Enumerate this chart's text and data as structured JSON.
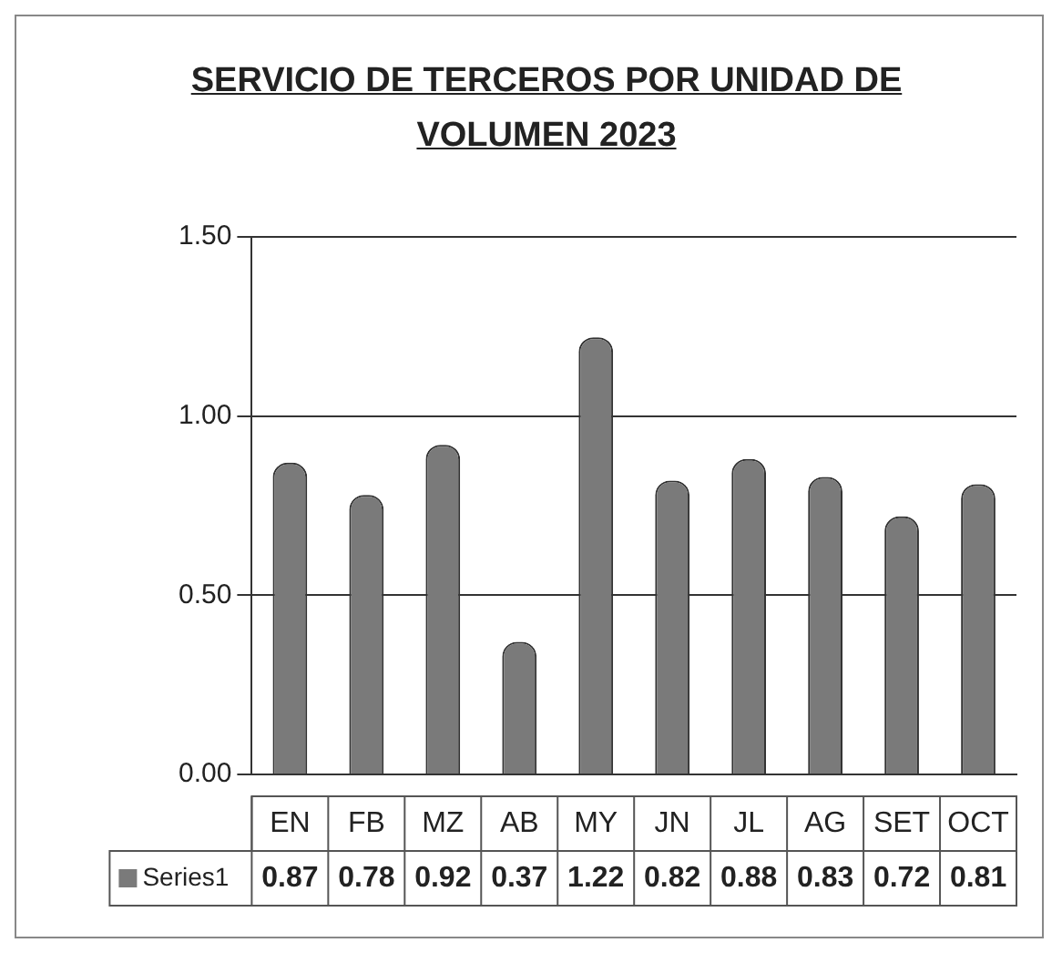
{
  "chart_data": {
    "type": "bar",
    "title": "SERVICIO DE TERCEROS POR UNIDAD DE VOLUMEN 2023",
    "categories": [
      "EN",
      "FB",
      "MZ",
      "AB",
      "MY",
      "JN",
      "JL",
      "AG",
      "SET",
      "OCT"
    ],
    "series": [
      {
        "name": "Series1",
        "color": "#7a7a7a",
        "values": [
          0.87,
          0.78,
          0.92,
          0.37,
          1.22,
          0.82,
          0.88,
          0.83,
          0.72,
          0.81
        ]
      }
    ],
    "ylim": [
      0,
      1.5
    ],
    "yticks": [
      {
        "value": 0,
        "label": "0.00"
      },
      {
        "value": 0.5,
        "label": "0.50"
      },
      {
        "value": 1,
        "label": "1.00"
      },
      {
        "value": 1.5,
        "label": "1.50"
      }
    ],
    "grid": "y",
    "data_labels": true
  }
}
